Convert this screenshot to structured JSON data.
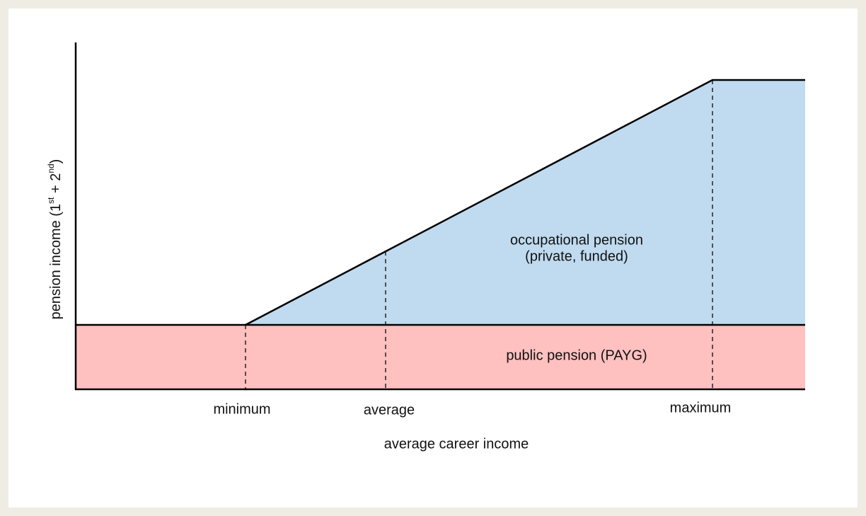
{
  "diagram": {
    "y_axis_label": [
      "pension income (1",
      "st",
      " + 2",
      "nd",
      ")"
    ],
    "x_axis_label": "average career income",
    "x_markers": [
      "minimum",
      "average",
      "maximum"
    ],
    "regions": {
      "occupational": [
        "occupational pension",
        "(private, funded)"
      ],
      "public": "public pension (PAYG)"
    }
  }
}
